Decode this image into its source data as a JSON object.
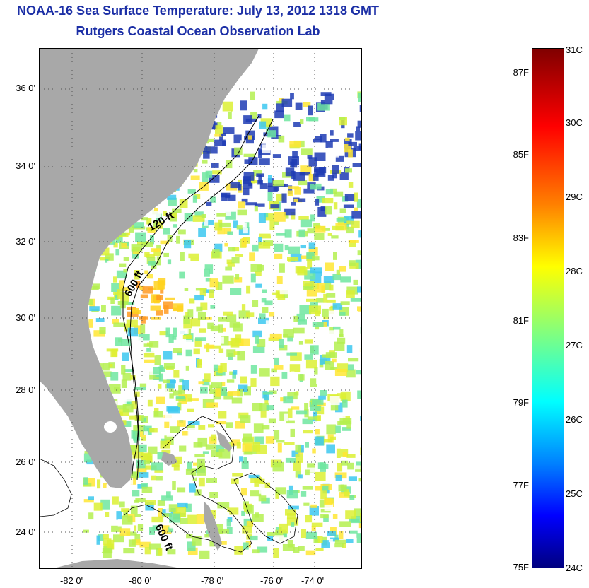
{
  "title": {
    "line1": "NOAA-16 Sea Surface Temperature:  July 13, 2012 1318 GMT",
    "line2": "Rutgers Coastal Ocean Observation Lab"
  },
  "map": {
    "lat_labels": [
      "36 0'",
      "34 0'",
      "32 0'",
      "30 0'",
      "28 0'",
      "26 0'",
      "24 0'"
    ],
    "lon_labels": [
      "-82 0'",
      "-80 0'",
      "-78 0'",
      "-76 0'",
      "-74 0'"
    ],
    "contour_labels": [
      "120 ft",
      "600 ft",
      "600 ft"
    ],
    "land_color": "#a8a8a8",
    "grid": "dotted"
  },
  "colorbar": {
    "fahrenheit_labels": [
      "87F",
      "85F",
      "83F",
      "81F",
      "79F",
      "77F",
      "75F"
    ],
    "celsius_labels": [
      "31C",
      "30C",
      "29C",
      "28C",
      "27C",
      "26C",
      "25C",
      "24C"
    ],
    "range_c": [
      24,
      31
    ],
    "colormap": "jet"
  }
}
